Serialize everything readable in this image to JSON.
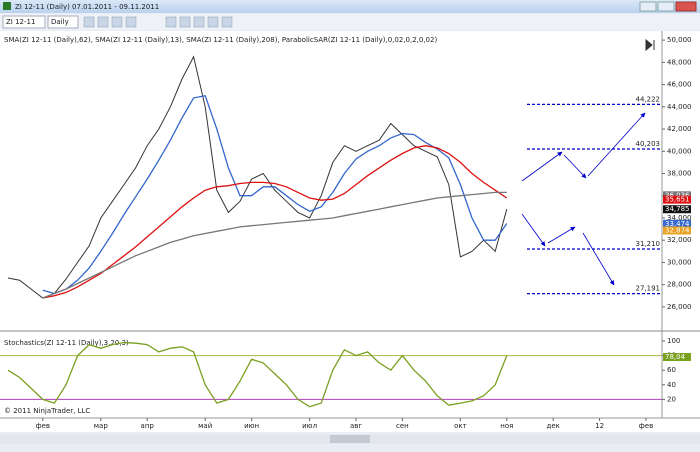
{
  "window": {
    "title": "ZI 12-11 (Daily)  07.01.2011 - 09.11.2011"
  },
  "toolbar": {
    "instrument": "ZI 12-11",
    "interval": "Daily"
  },
  "footer": {
    "copyright": "© 2011 NinjaTrader, LLC"
  },
  "chart_data": [
    {
      "type": "line",
      "title": "SMA(ZI 12-11 (Daily),62), SMA(ZI 12-11 (Daily),13), SMA(ZI 12-11 (Daily),208), ParabolicSAR(ZI 12-11 (Daily),0,02,0,2,0,02)",
      "categories": [
        null,
        null,
        null,
        "фев",
        null,
        null,
        null,
        null,
        "мар",
        null,
        null,
        null,
        "апр",
        null,
        null,
        null,
        null,
        "май",
        null,
        null,
        null,
        "июн",
        null,
        null,
        null,
        null,
        "июл",
        null,
        null,
        null,
        "авг",
        null,
        null,
        null,
        "сен",
        null,
        null,
        null,
        null,
        "окт",
        null,
        null,
        null,
        "ноя",
        null,
        null,
        null,
        "дек",
        null,
        null,
        null,
        "12",
        null,
        null,
        null,
        "фев",
        null
      ],
      "series": [
        {
          "color": "#333333",
          "values": [
            28600,
            28400,
            27600,
            26800,
            27200,
            28500,
            30000,
            31500,
            34000,
            35500,
            37000,
            38500,
            40500,
            42000,
            44000,
            46500,
            48500,
            44000,
            36500,
            34500,
            35500,
            37500,
            38000,
            36500,
            35500,
            34500,
            34000,
            36000,
            39000,
            40500,
            40000,
            40500,
            41000,
            42500,
            41500,
            40500,
            40000,
            39500,
            37000,
            30500,
            31000,
            32000,
            31000,
            34800,
            null,
            null,
            null,
            null,
            null,
            null,
            null,
            null,
            null,
            null,
            null,
            null,
            null
          ]
        },
        {
          "color": "#3366cc",
          "values": [
            null,
            null,
            null,
            27500,
            27200,
            27600,
            28400,
            29500,
            31000,
            32600,
            34300,
            35900,
            37500,
            39200,
            41000,
            43000,
            44800,
            45000,
            42000,
            38500,
            36000,
            36000,
            36800,
            36800,
            36000,
            35200,
            34600,
            35000,
            36300,
            38000,
            39300,
            40000,
            40500,
            41200,
            41600,
            41500,
            40800,
            40200,
            39400,
            37000,
            34000,
            32000,
            32000,
            33500,
            null,
            null,
            null,
            null,
            null,
            null,
            null,
            null,
            null,
            null,
            null,
            null,
            null
          ]
        },
        {
          "color": "#dd1111",
          "values": [
            null,
            null,
            null,
            26800,
            27000,
            27300,
            27800,
            28400,
            29000,
            29800,
            30600,
            31400,
            32300,
            33200,
            34100,
            35000,
            35800,
            36500,
            36800,
            36900,
            37100,
            37200,
            37200,
            37100,
            36800,
            36300,
            35800,
            35600,
            35700,
            36200,
            37000,
            37800,
            38500,
            39200,
            39800,
            40300,
            40500,
            40300,
            39800,
            39000,
            38000,
            37200,
            36500,
            35800,
            null,
            null,
            null,
            null,
            null,
            null,
            null,
            null,
            null,
            null,
            null,
            null,
            null
          ]
        },
        {
          "color": "#777777",
          "values": [
            null,
            null,
            null,
            26800,
            27200,
            27600,
            28100,
            28600,
            29100,
            29600,
            30100,
            30600,
            31000,
            31400,
            31800,
            32100,
            32400,
            32600,
            32800,
            33000,
            33200,
            33300,
            33400,
            33500,
            33600,
            33700,
            33800,
            33900,
            34000,
            34200,
            34400,
            34600,
            34800,
            35000,
            35200,
            35400,
            35600,
            35800,
            35900,
            36000,
            36100,
            36200,
            36300,
            36300,
            null,
            null,
            null,
            null,
            null,
            null,
            null,
            null,
            null,
            null,
            null,
            null,
            null
          ]
        }
      ],
      "ylim": [
        25000,
        51000
      ],
      "yticks": [
        {
          "value": 26000,
          "label": "26,000"
        },
        {
          "value": 28000,
          "label": "28,000"
        },
        {
          "value": 30000,
          "label": "30,000"
        },
        {
          "value": 32000,
          "label": "32,000"
        },
        {
          "value": 34000,
          "label": "34,000"
        },
        {
          "value": 36000,
          "label": "36,000"
        },
        {
          "value": 38000,
          "label": "38,000"
        },
        {
          "value": 40000,
          "label": "40,000"
        },
        {
          "value": 42000,
          "label": "42,000"
        },
        {
          "value": 44000,
          "label": "44,000"
        },
        {
          "value": 46000,
          "label": "46,000"
        },
        {
          "value": 48000,
          "label": "48,000"
        },
        {
          "value": 50000,
          "label": "50,000"
        }
      ],
      "levels": [
        {
          "value": 44222,
          "label": "44,222"
        },
        {
          "value": 40203,
          "label": "40,203"
        },
        {
          "value": 31210,
          "label": "31,210"
        },
        {
          "value": 27191,
          "label": "27,191"
        }
      ],
      "level_color": "#0000cc",
      "price_boxes": [
        {
          "value": 36036,
          "label": "36,036",
          "color": "#777777"
        },
        {
          "value": 35651,
          "label": "35,651",
          "color": "#dd1111"
        },
        {
          "value": 34785,
          "label": "34,785",
          "color": "#111111"
        },
        {
          "value": 33474,
          "label": "33,474",
          "color": "#3366cc"
        },
        {
          "value": 32874,
          "label": "32,874",
          "color": "#e8a020"
        }
      ]
    },
    {
      "type": "line",
      "title": "Stochastics(ZI 12-11 (Daily),3,20,3)",
      "series": [
        {
          "color": "#7aa020",
          "values": [
            60,
            50,
            35,
            20,
            15,
            40,
            80,
            95,
            90,
            95,
            98,
            97,
            95,
            85,
            90,
            92,
            85,
            40,
            15,
            20,
            45,
            75,
            70,
            55,
            40,
            20,
            10,
            15,
            60,
            88,
            80,
            85,
            70,
            60,
            80,
            60,
            45,
            25,
            12,
            15,
            18,
            25,
            40,
            80,
            null,
            null,
            null,
            null,
            null,
            null,
            null,
            null,
            null,
            null,
            null,
            null,
            null
          ]
        }
      ],
      "ylim": [
        0,
        100
      ],
      "yticks": [
        20,
        40,
        60,
        80,
        100
      ],
      "levels": [
        {
          "value": 80,
          "color": "#a8b840"
        },
        {
          "value": 20,
          "color": "#b040c0"
        }
      ],
      "price_boxes": [
        {
          "value": 78.04,
          "label": "78,04",
          "color": "#7aa020"
        }
      ]
    }
  ]
}
